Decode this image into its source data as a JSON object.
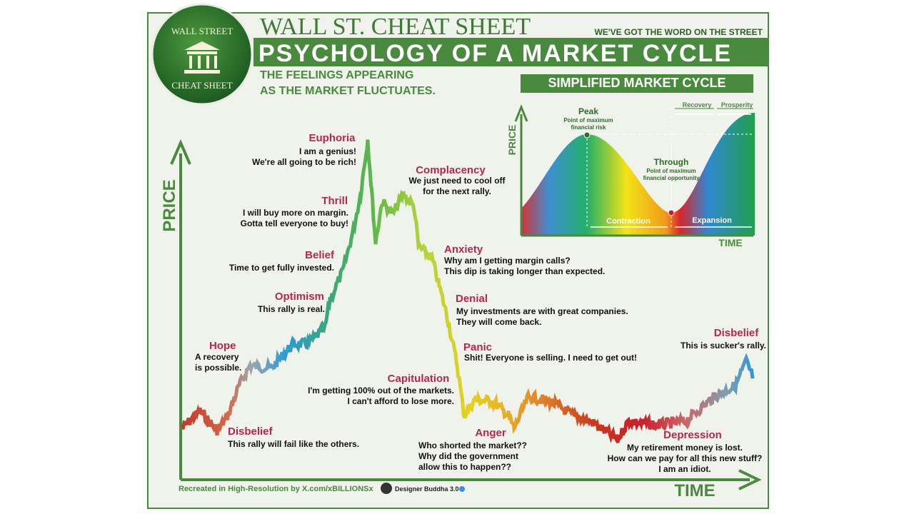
{
  "header": {
    "brand_top": "WALL STREET",
    "brand_bottom": "CHEAT SHEET",
    "title_top": "WALL ST. CHEAT SHEET",
    "tagline": "WE'VE GOT THE WORD ON THE STREET",
    "title": "PSYCHOLOGY OF A MARKET CYCLE",
    "subtitle": [
      "THE FEELINGS APPEARING",
      "AS THE MARKET FLUCTUATES."
    ]
  },
  "main_chart": {
    "y_label": "PRICE",
    "x_label": "TIME",
    "phases": [
      {
        "name": "Hope",
        "text": [
          "A recovery",
          "is possible."
        ]
      },
      {
        "name": "Disbelief",
        "text": [
          "This rally will fail like the others."
        ]
      },
      {
        "name": "Optimism",
        "text": [
          "This rally is real."
        ]
      },
      {
        "name": "Belief",
        "text": [
          "Time to get fully invested."
        ]
      },
      {
        "name": "Thrill",
        "text": [
          "I will buy more on margin.",
          "Gotta tell everyone to buy!"
        ]
      },
      {
        "name": "Euphoria",
        "text": [
          "I am a genius!",
          "We're all going to be rich!"
        ]
      },
      {
        "name": "Complacency",
        "text": [
          "We just need to cool off",
          "for the next rally."
        ]
      },
      {
        "name": "Anxiety",
        "text": [
          "Why am I getting margin calls?",
          "This dip is taking longer than expected."
        ]
      },
      {
        "name": "Denial",
        "text": [
          "My investments are with great companies.",
          "They will come back."
        ]
      },
      {
        "name": "Panic",
        "text": [
          "Shit! Everyone is selling. I need to get out!"
        ]
      },
      {
        "name": "Capitulation",
        "text": [
          "I'm getting 100% out of the markets.",
          "I can't afford to lose more."
        ]
      },
      {
        "name": "Anger",
        "text": [
          "Who shorted the market??",
          "Why did the government",
          "allow this to happen??"
        ]
      },
      {
        "name": "Depression",
        "text": [
          "My retirement money is lost.",
          "How can we pay for all this new stuff?",
          "I am an idiot."
        ]
      },
      {
        "name": "Disbelief",
        "text": [
          "This is sucker's rally."
        ]
      }
    ]
  },
  "inset": {
    "title": "SIMPLIFIED MARKET CYCLE",
    "y_label": "PRICE",
    "x_label": "TIME",
    "peak": "Peak",
    "peak_note": [
      "Point of maximum",
      "financial risk"
    ],
    "trough": "Through",
    "trough_note": [
      "Point of maximum",
      "financial opportunity"
    ],
    "contraction": "Contraction",
    "expansion": "Expansion",
    "recovery": "Recovery",
    "prosperity": "Prosperity"
  },
  "footer": {
    "credit": "Recreated in High-Resolution by X.com/xBILLIONSx",
    "designer": "Designer Buddha 3.0"
  }
}
